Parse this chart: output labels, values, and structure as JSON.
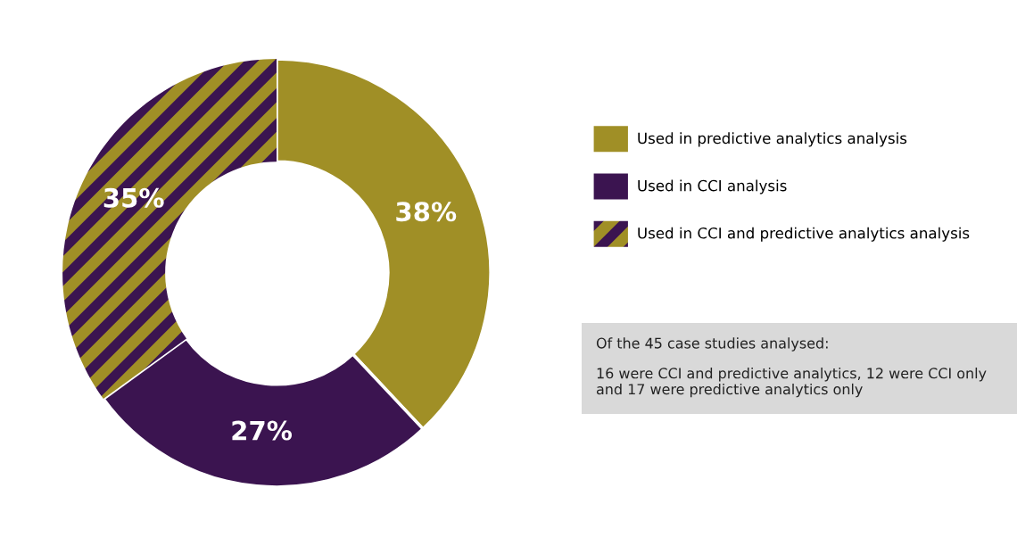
{
  "chart_data": {
    "type": "donut",
    "categories": [
      "Used in predictive analytics analysis",
      "Used in CCI analysis",
      "Used in CCI and predictive analytics analysis"
    ],
    "values": [
      38,
      27,
      35
    ],
    "colors": [
      "#a08f26",
      "#3b1450",
      [
        "#3b1450",
        "#a08f26"
      ]
    ],
    "value_labels": [
      "38%",
      "27%",
      "35%"
    ],
    "legend": "right",
    "annotations": [
      "Of the 45 case studies analysed:",
      "16 were CCI and predictive analytics, 12 were CCI only and 17 were predictive analytics only"
    ]
  }
}
